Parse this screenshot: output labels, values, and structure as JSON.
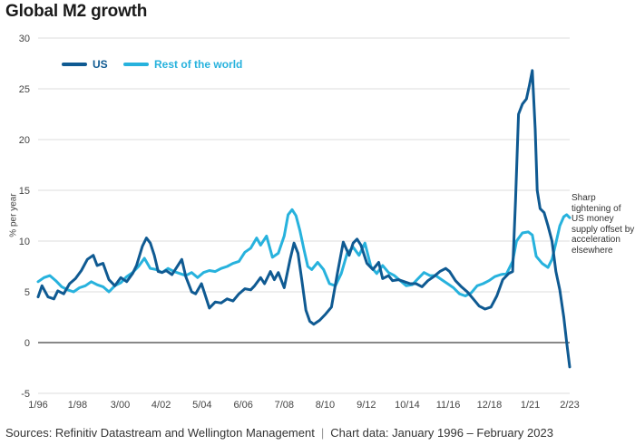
{
  "title": "Global M2 growth",
  "source": "Sources: Refinitiv Datastream and Wellington Management",
  "chart_period": "Chart data: January 1996 – February 2023",
  "annotation": "Sharp tightening of US money supply offset by acceleration elsewhere",
  "colors": {
    "us": "#0f5a92",
    "rest": "#27b2dd",
    "grid": "#dcdcdc",
    "zero": "#111111"
  },
  "chart_data": {
    "type": "line",
    "ylabel": "% per year",
    "xlabel": "",
    "ylim": [
      -5,
      30
    ],
    "yticks": [
      -5,
      0,
      5,
      10,
      15,
      20,
      25,
      30
    ],
    "xlim": [
      1996.0,
      2023.0
    ],
    "xticks": [
      {
        "label": "1/96",
        "x": 1996.0
      },
      {
        "label": "1/98",
        "x": 1998.0
      },
      {
        "label": "3/00",
        "x": 2000.17
      },
      {
        "label": "4/02",
        "x": 2002.25
      },
      {
        "label": "5/04",
        "x": 2004.33
      },
      {
        "label": "6/06",
        "x": 2006.42
      },
      {
        "label": "7/08",
        "x": 2008.5
      },
      {
        "label": "8/10",
        "x": 2010.58
      },
      {
        "label": "9/12",
        "x": 2012.67
      },
      {
        "label": "10/14",
        "x": 2014.75
      },
      {
        "label": "11/16",
        "x": 2016.83
      },
      {
        "label": "12/18",
        "x": 2018.92
      },
      {
        "label": "1/21",
        "x": 2021.0
      },
      {
        "label": "2/23",
        "x": 2023.0
      }
    ],
    "grid": true,
    "legend_position": "top-left",
    "series": [
      {
        "name": "US",
        "points": [
          [
            1996.0,
            4.5
          ],
          [
            1996.2,
            5.6
          ],
          [
            1996.5,
            4.5
          ],
          [
            1996.8,
            4.3
          ],
          [
            1997.0,
            5.1
          ],
          [
            1997.3,
            4.8
          ],
          [
            1997.6,
            5.8
          ],
          [
            1997.9,
            6.3
          ],
          [
            1998.2,
            7.1
          ],
          [
            1998.5,
            8.2
          ],
          [
            1998.8,
            8.6
          ],
          [
            1999.0,
            7.6
          ],
          [
            1999.3,
            7.8
          ],
          [
            1999.6,
            6.2
          ],
          [
            1999.9,
            5.6
          ],
          [
            2000.2,
            6.4
          ],
          [
            2000.5,
            6.0
          ],
          [
            2000.8,
            6.8
          ],
          [
            2001.0,
            7.6
          ],
          [
            2001.3,
            9.5
          ],
          [
            2001.5,
            10.3
          ],
          [
            2001.7,
            9.8
          ],
          [
            2001.9,
            8.6
          ],
          [
            2002.1,
            7.0
          ],
          [
            2002.3,
            6.9
          ],
          [
            2002.5,
            7.1
          ],
          [
            2002.8,
            6.7
          ],
          [
            2003.1,
            7.6
          ],
          [
            2003.3,
            8.2
          ],
          [
            2003.5,
            6.5
          ],
          [
            2003.8,
            5.0
          ],
          [
            2004.0,
            4.8
          ],
          [
            2004.3,
            5.8
          ],
          [
            2004.5,
            4.6
          ],
          [
            2004.7,
            3.4
          ],
          [
            2005.0,
            4.0
          ],
          [
            2005.3,
            3.9
          ],
          [
            2005.6,
            4.3
          ],
          [
            2005.9,
            4.1
          ],
          [
            2006.2,
            4.8
          ],
          [
            2006.5,
            5.3
          ],
          [
            2006.8,
            5.2
          ],
          [
            2007.0,
            5.6
          ],
          [
            2007.3,
            6.4
          ],
          [
            2007.5,
            5.8
          ],
          [
            2007.8,
            7.0
          ],
          [
            2008.0,
            6.2
          ],
          [
            2008.2,
            6.9
          ],
          [
            2008.5,
            5.4
          ],
          [
            2008.8,
            8.2
          ],
          [
            2009.0,
            9.8
          ],
          [
            2009.2,
            8.8
          ],
          [
            2009.4,
            6.1
          ],
          [
            2009.6,
            3.2
          ],
          [
            2009.8,
            2.1
          ],
          [
            2010.0,
            1.8
          ],
          [
            2010.3,
            2.2
          ],
          [
            2010.6,
            2.8
          ],
          [
            2010.9,
            3.5
          ],
          [
            2011.2,
            6.8
          ],
          [
            2011.5,
            9.9
          ],
          [
            2011.8,
            8.6
          ],
          [
            2012.0,
            9.8
          ],
          [
            2012.2,
            10.2
          ],
          [
            2012.4,
            9.6
          ],
          [
            2012.7,
            7.8
          ],
          [
            2013.0,
            7.2
          ],
          [
            2013.3,
            7.9
          ],
          [
            2013.5,
            6.3
          ],
          [
            2013.8,
            6.6
          ],
          [
            2014.0,
            6.1
          ],
          [
            2014.3,
            6.2
          ],
          [
            2014.6,
            6.0
          ],
          [
            2014.9,
            5.8
          ],
          [
            2015.2,
            5.8
          ],
          [
            2015.5,
            5.5
          ],
          [
            2015.8,
            6.1
          ],
          [
            2016.1,
            6.5
          ],
          [
            2016.4,
            7.0
          ],
          [
            2016.7,
            7.3
          ],
          [
            2016.9,
            7.0
          ],
          [
            2017.2,
            6.1
          ],
          [
            2017.5,
            5.5
          ],
          [
            2017.8,
            5.0
          ],
          [
            2018.1,
            4.3
          ],
          [
            2018.4,
            3.6
          ],
          [
            2018.7,
            3.3
          ],
          [
            2019.0,
            3.5
          ],
          [
            2019.3,
            4.6
          ],
          [
            2019.6,
            6.2
          ],
          [
            2019.9,
            6.8
          ],
          [
            2020.1,
            7.0
          ],
          [
            2020.25,
            14.0
          ],
          [
            2020.4,
            22.5
          ],
          [
            2020.6,
            23.5
          ],
          [
            2020.8,
            24.0
          ],
          [
            2020.95,
            25.3
          ],
          [
            2021.1,
            26.8
          ],
          [
            2021.25,
            21.0
          ],
          [
            2021.35,
            15.0
          ],
          [
            2021.5,
            13.2
          ],
          [
            2021.7,
            12.8
          ],
          [
            2021.9,
            11.5
          ],
          [
            2022.1,
            10.0
          ],
          [
            2022.3,
            7.0
          ],
          [
            2022.5,
            5.2
          ],
          [
            2022.7,
            2.5
          ],
          [
            2022.85,
            0.0
          ],
          [
            2023.0,
            -2.4
          ]
        ]
      },
      {
        "name": "Rest of the world",
        "points": [
          [
            1996.0,
            6.0
          ],
          [
            1996.3,
            6.4
          ],
          [
            1996.6,
            6.6
          ],
          [
            1996.9,
            6.1
          ],
          [
            1997.2,
            5.5
          ],
          [
            1997.5,
            5.2
          ],
          [
            1997.8,
            5.0
          ],
          [
            1998.1,
            5.4
          ],
          [
            1998.4,
            5.6
          ],
          [
            1998.7,
            6.0
          ],
          [
            1999.0,
            5.7
          ],
          [
            1999.3,
            5.5
          ],
          [
            1999.6,
            5.0
          ],
          [
            1999.9,
            5.6
          ],
          [
            2000.2,
            5.9
          ],
          [
            2000.5,
            6.5
          ],
          [
            2000.8,
            6.9
          ],
          [
            2001.1,
            7.5
          ],
          [
            2001.4,
            8.3
          ],
          [
            2001.7,
            7.3
          ],
          [
            2002.0,
            7.2
          ],
          [
            2002.3,
            6.9
          ],
          [
            2002.6,
            7.3
          ],
          [
            2002.9,
            7.0
          ],
          [
            2003.2,
            6.8
          ],
          [
            2003.5,
            6.6
          ],
          [
            2003.8,
            6.9
          ],
          [
            2004.1,
            6.4
          ],
          [
            2004.4,
            6.9
          ],
          [
            2004.7,
            7.1
          ],
          [
            2005.0,
            7.0
          ],
          [
            2005.3,
            7.3
          ],
          [
            2005.6,
            7.5
          ],
          [
            2005.9,
            7.8
          ],
          [
            2006.2,
            8.0
          ],
          [
            2006.5,
            8.9
          ],
          [
            2006.8,
            9.3
          ],
          [
            2007.1,
            10.3
          ],
          [
            2007.3,
            9.6
          ],
          [
            2007.6,
            10.5
          ],
          [
            2007.9,
            8.4
          ],
          [
            2008.2,
            8.8
          ],
          [
            2008.5,
            10.5
          ],
          [
            2008.7,
            12.6
          ],
          [
            2008.9,
            13.1
          ],
          [
            2009.1,
            12.5
          ],
          [
            2009.3,
            11.0
          ],
          [
            2009.5,
            9.2
          ],
          [
            2009.7,
            7.5
          ],
          [
            2009.9,
            7.2
          ],
          [
            2010.2,
            7.9
          ],
          [
            2010.5,
            7.2
          ],
          [
            2010.8,
            5.8
          ],
          [
            2011.1,
            5.6
          ],
          [
            2011.4,
            6.8
          ],
          [
            2011.7,
            8.8
          ],
          [
            2012.0,
            9.4
          ],
          [
            2012.3,
            8.6
          ],
          [
            2012.6,
            9.8
          ],
          [
            2012.9,
            7.5
          ],
          [
            2013.2,
            6.8
          ],
          [
            2013.5,
            7.6
          ],
          [
            2013.8,
            6.9
          ],
          [
            2014.1,
            6.6
          ],
          [
            2014.4,
            6.1
          ],
          [
            2014.7,
            5.6
          ],
          [
            2015.0,
            5.7
          ],
          [
            2015.3,
            6.3
          ],
          [
            2015.6,
            6.9
          ],
          [
            2015.9,
            6.6
          ],
          [
            2016.2,
            6.6
          ],
          [
            2016.5,
            6.2
          ],
          [
            2016.8,
            5.8
          ],
          [
            2017.1,
            5.4
          ],
          [
            2017.4,
            4.8
          ],
          [
            2017.7,
            4.6
          ],
          [
            2018.0,
            4.9
          ],
          [
            2018.3,
            5.6
          ],
          [
            2018.6,
            5.8
          ],
          [
            2018.9,
            6.1
          ],
          [
            2019.2,
            6.5
          ],
          [
            2019.5,
            6.7
          ],
          [
            2019.8,
            6.8
          ],
          [
            2020.1,
            8.0
          ],
          [
            2020.3,
            10.0
          ],
          [
            2020.6,
            10.8
          ],
          [
            2020.9,
            10.9
          ],
          [
            2021.1,
            10.6
          ],
          [
            2021.3,
            8.5
          ],
          [
            2021.6,
            7.8
          ],
          [
            2021.9,
            7.4
          ],
          [
            2022.1,
            8.2
          ],
          [
            2022.3,
            9.8
          ],
          [
            2022.5,
            11.5
          ],
          [
            2022.7,
            12.4
          ],
          [
            2022.85,
            12.6
          ],
          [
            2023.0,
            12.3
          ]
        ]
      }
    ]
  }
}
